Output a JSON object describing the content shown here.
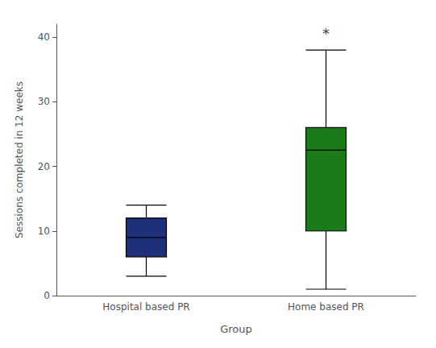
{
  "chart_data": {
    "type": "boxplot",
    "categories": [
      "Hospital based PR",
      "Home based PR"
    ],
    "values": [
      [
        3,
        6,
        9,
        12,
        14
      ],
      [
        1,
        10,
        22.5,
        26,
        38
      ]
    ],
    "colors": [
      "#1F2F7A",
      "#1A7A1A"
    ],
    "xlabel": "Group",
    "ylabel": "Sessions completed in 12 weeks",
    "ylim": [
      0,
      42
    ],
    "yticks": [
      0,
      10,
      20,
      30,
      40
    ],
    "grid": false,
    "annotations": [
      {
        "text": "*",
        "x": "Home based PR",
        "y": 39.5
      }
    ]
  }
}
